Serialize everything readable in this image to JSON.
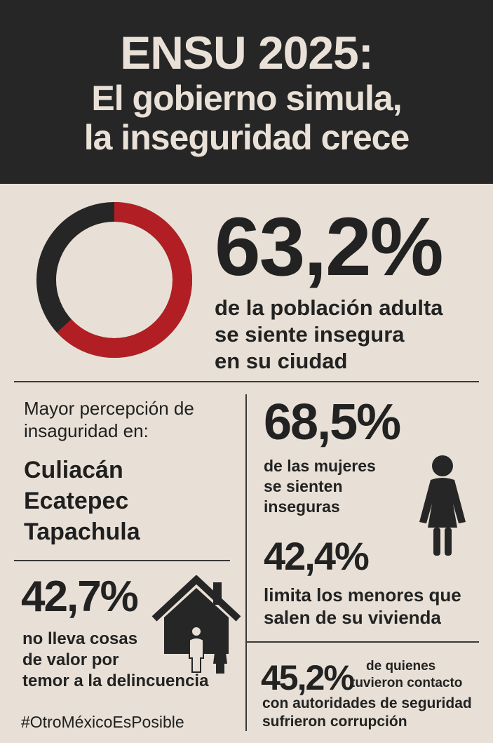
{
  "header": {
    "title_line1": "ENSU 2025:",
    "title_line2": "El gobierno simula,",
    "title_line3": "la inseguridad crece"
  },
  "colors": {
    "background": "#e8e0d6",
    "header_bg": "#262626",
    "accent_red": "#b11f24",
    "dark": "#262626"
  },
  "insecurity_overall": {
    "percent_value": 63.2,
    "percent_label": "63,2%",
    "line1": "de la población adulta",
    "line2": "se siente insegura",
    "line3": "en su ciudad"
  },
  "perception": {
    "title_line1": "Mayor percepción de",
    "title_line2": "insaguridad en:",
    "cities": [
      "Culiacán",
      "Ecatepec",
      "Tapachula"
    ]
  },
  "women": {
    "percent_label": "68,5%",
    "line1": "de las mujeres",
    "line2": "se sienten",
    "line3": "inseguras",
    "icon": "woman-icon"
  },
  "minors": {
    "percent_label": "42,4%",
    "line1": "limita los menores que",
    "line2": "salen de su vivienda"
  },
  "valuables": {
    "percent_label": "42,7%",
    "line1": "no lleva cosas",
    "line2": "de valor por",
    "line3": "temor a la delincuencia",
    "icon": "house-family-icon"
  },
  "corruption": {
    "percent_label": "45,2%",
    "inline_line1": "de quienes",
    "inline_line2": "tuvieron contacto",
    "line1": "con autoridades de seguridad",
    "line2": "sufrieron corrupción"
  },
  "hashtag": "#OtroMéxicoEsPosible"
}
